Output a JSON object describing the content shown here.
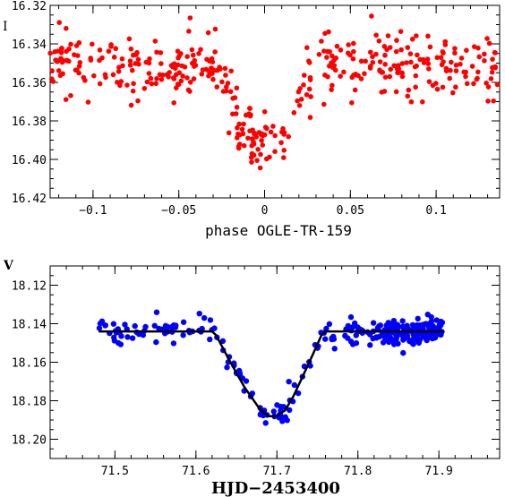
{
  "chart_data": [
    {
      "type": "scatter",
      "panel": "top",
      "xlabel": "phase OGLE-TR-159",
      "ylabel": "I",
      "xlim": [
        -0.125,
        0.137
      ],
      "ylim": [
        16.42,
        16.32
      ],
      "y_inverted": true,
      "x_major_ticks": [
        -0.1,
        -0.05,
        0,
        0.05,
        0.1
      ],
      "x_tick_labels": [
        "−0.1",
        "−0.05",
        "0",
        "0.05",
        "0.1"
      ],
      "y_major_ticks": [
        16.32,
        16.34,
        16.36,
        16.38,
        16.4,
        16.42
      ],
      "y_tick_labels": [
        "16.32",
        "16.34",
        "16.36",
        "16.38",
        "16.40",
        "16.42"
      ],
      "grid": false,
      "marker_color": "#ff0000",
      "transit_model": {
        "baseline": 16.351,
        "depth": 0.039,
        "ingress_start": -0.028,
        "bottom_start": -0.012,
        "bottom_end": 0.012,
        "egress_end": 0.028,
        "scatter": 0.008
      },
      "n_points": 420
    },
    {
      "type": "scatter",
      "panel": "bottom",
      "xlabel": "HJD−2453400",
      "ylabel": "V",
      "xlim": [
        71.42,
        71.975
      ],
      "ylim": [
        18.21,
        18.11
      ],
      "y_inverted": true,
      "x_major_ticks": [
        71.5,
        71.6,
        71.7,
        71.8,
        71.9
      ],
      "x_tick_labels": [
        "71.5",
        "71.6",
        "71.7",
        "71.8",
        "71.9"
      ],
      "y_major_ticks": [
        18.12,
        18.14,
        18.16,
        18.18,
        18.2
      ],
      "y_tick_labels": [
        "18.12",
        "18.14",
        "18.16",
        "18.18",
        "18.20"
      ],
      "grid": false,
      "marker_color": "#0000ff",
      "model_color": "#000000",
      "model_curve": {
        "x": [
          71.48,
          71.62,
          71.625,
          71.64,
          71.66,
          71.68,
          71.69,
          71.7,
          71.71,
          71.72,
          71.74,
          71.755,
          71.76,
          71.905
        ],
        "y": [
          18.144,
          18.144,
          18.146,
          18.158,
          18.173,
          18.185,
          18.188,
          18.188,
          18.185,
          18.178,
          18.16,
          18.146,
          18.144,
          18.144
        ]
      },
      "data_segments": [
        {
          "x_start": 71.48,
          "x_end": 71.62,
          "count": 55
        },
        {
          "x_start": 71.62,
          "x_end": 71.77,
          "count": 60
        },
        {
          "x_start": 71.77,
          "x_end": 71.83,
          "count": 35
        },
        {
          "x_start": 71.83,
          "x_end": 71.905,
          "count": 140
        }
      ],
      "scatter": 0.0032
    }
  ]
}
